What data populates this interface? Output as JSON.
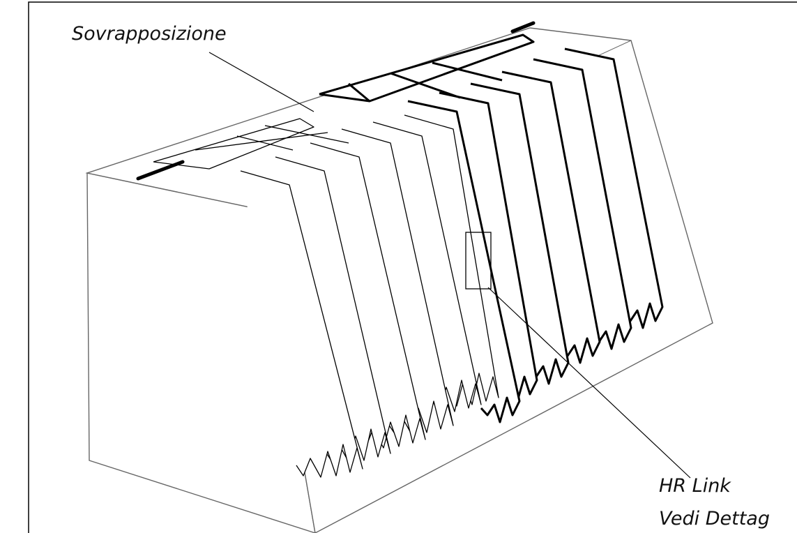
{
  "labels": {
    "overlap": "Sovrapposizione",
    "link": "HR Link",
    "detail": "Vedi Dettag"
  }
}
